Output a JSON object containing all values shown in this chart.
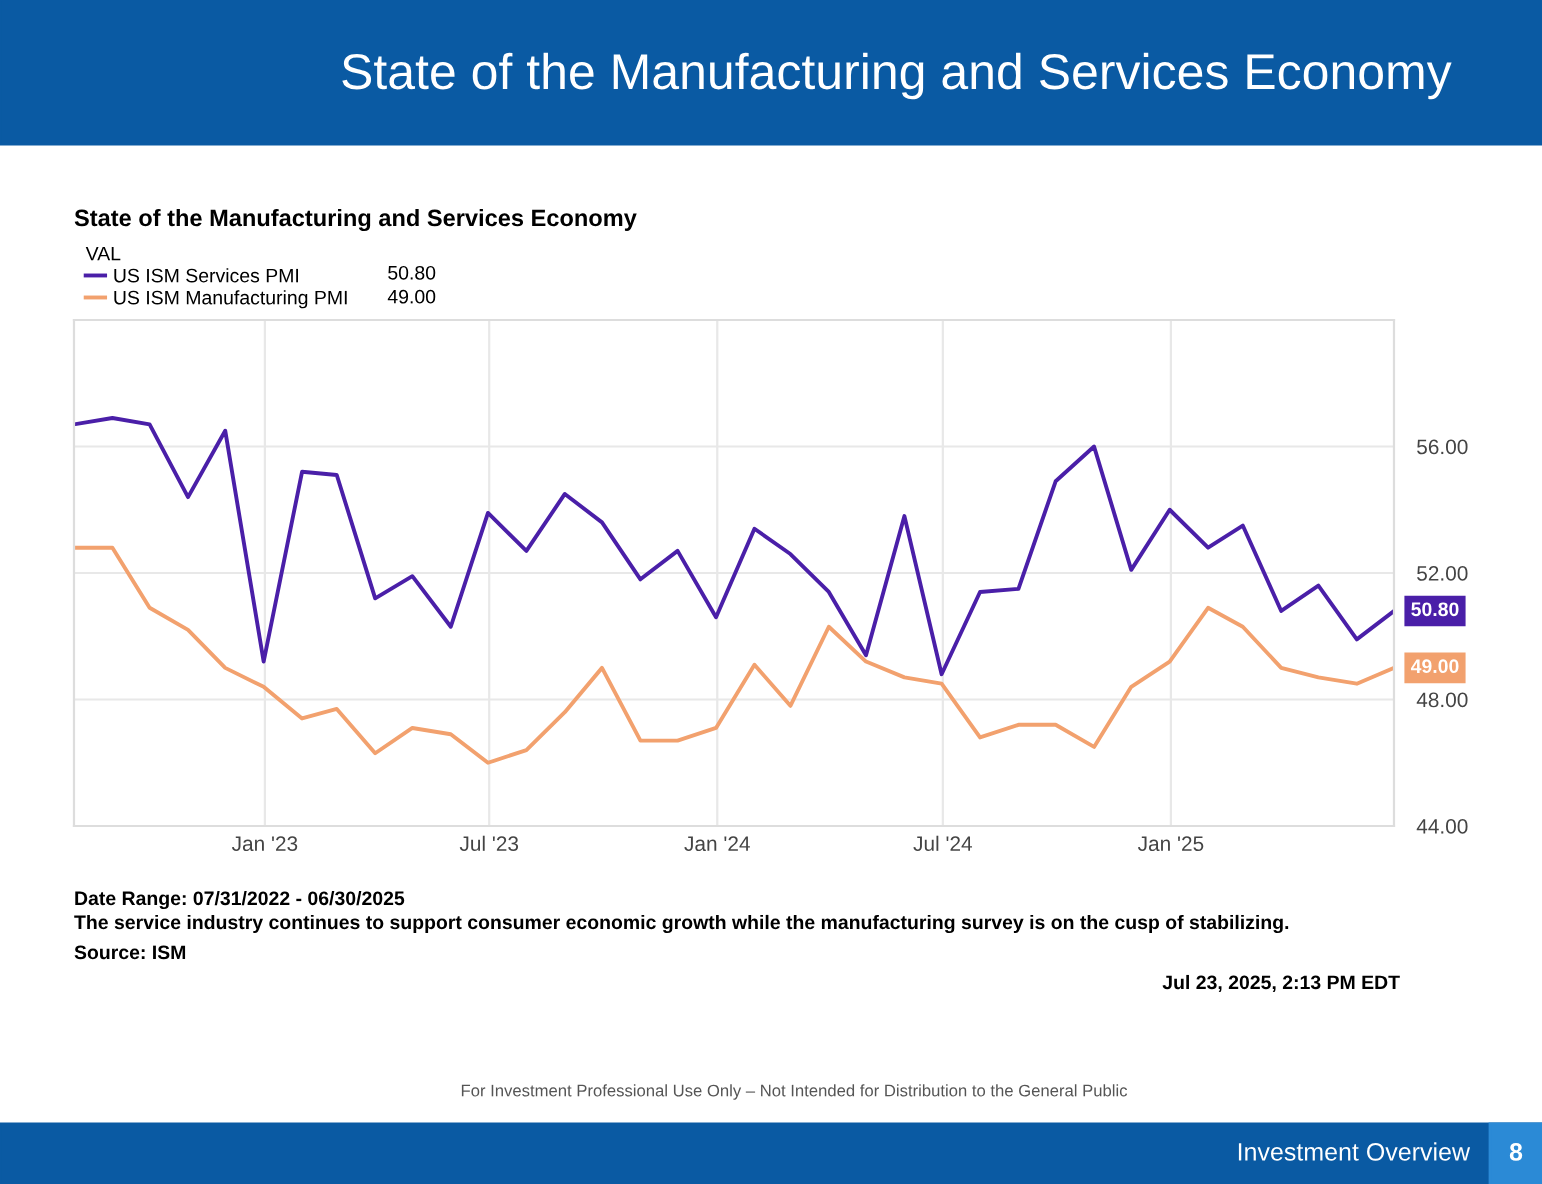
{
  "chart_data": {
    "type": "line",
    "title": "State of the Manufacturing and Services Economy",
    "subtitle": "State of the Manufacturing and Services Economy",
    "legend_title": "VAL",
    "legend": "top left",
    "grid": true,
    "marker": "none",
    "line_style": "solid",
    "x": [
      "2022-07-31",
      "2022-08-31",
      "2022-09-30",
      "2022-10-31",
      "2022-11-30",
      "2022-12-31",
      "2023-01-31",
      "2023-02-28",
      "2023-03-31",
      "2023-04-30",
      "2023-05-31",
      "2023-06-30",
      "2023-07-31",
      "2023-08-31",
      "2023-09-30",
      "2023-10-31",
      "2023-11-30",
      "2023-12-31",
      "2024-01-31",
      "2024-02-29",
      "2024-03-31",
      "2024-04-30",
      "2024-05-31",
      "2024-06-30",
      "2024-07-31",
      "2024-08-31",
      "2024-09-30",
      "2024-10-31",
      "2024-11-30",
      "2024-12-31",
      "2025-01-31",
      "2025-02-28",
      "2025-03-31",
      "2025-04-30",
      "2025-05-31",
      "2025-06-30"
    ],
    "series": [
      {
        "name": "US ISM Services PMI",
        "color": "#4a1fa8",
        "values": [
          56.7,
          56.9,
          56.7,
          54.4,
          56.5,
          49.2,
          55.2,
          55.1,
          51.2,
          51.9,
          50.3,
          53.9,
          52.7,
          54.5,
          53.6,
          51.8,
          52.7,
          50.6,
          53.4,
          52.6,
          51.4,
          49.4,
          53.8,
          48.8,
          51.4,
          51.5,
          54.9,
          56.0,
          52.1,
          54.0,
          52.8,
          53.5,
          50.8,
          51.6,
          49.9,
          50.8
        ],
        "value_labels": [
          null,
          null,
          null,
          null,
          null,
          null,
          null,
          null,
          null,
          null,
          null,
          null,
          null,
          null,
          null,
          null,
          null,
          null,
          null,
          null,
          null,
          null,
          null,
          null,
          null,
          null,
          null,
          null,
          null,
          null,
          null,
          null,
          null,
          null,
          null,
          "50.80"
        ]
      },
      {
        "name": "US ISM Manufacturing PMI",
        "color": "#f2a16e",
        "values": [
          52.8,
          52.8,
          50.9,
          50.2,
          49.0,
          48.4,
          47.4,
          47.7,
          46.3,
          47.1,
          46.9,
          46.0,
          46.4,
          47.6,
          49.0,
          46.7,
          46.7,
          47.1,
          49.1,
          47.8,
          50.3,
          49.2,
          48.7,
          48.5,
          46.8,
          47.2,
          47.2,
          46.5,
          48.4,
          49.2,
          50.9,
          50.3,
          49.0,
          48.7,
          48.5,
          49.0
        ],
        "value_labels": [
          null,
          null,
          null,
          null,
          null,
          null,
          null,
          null,
          null,
          null,
          null,
          null,
          null,
          null,
          null,
          null,
          null,
          null,
          null,
          null,
          null,
          null,
          null,
          null,
          null,
          null,
          null,
          null,
          null,
          null,
          null,
          null,
          null,
          null,
          null,
          "49.00"
        ]
      }
    ],
    "xlim": [
      "2022-07-31",
      "2025-06-30"
    ],
    "xticks": [
      {
        "value": "2023-01-01",
        "label": "Jan '23"
      },
      {
        "value": "2023-07-01",
        "label": "Jul '23"
      },
      {
        "value": "2024-01-01",
        "label": "Jan '24"
      },
      {
        "value": "2024-07-01",
        "label": "Jul '24"
      },
      {
        "value": "2025-01-01",
        "label": "Jan '25"
      }
    ],
    "ylim": [
      44,
      60
    ],
    "yticks": [
      {
        "value": 44,
        "label": "44.00"
      },
      {
        "value": 48,
        "label": "48.00"
      },
      {
        "value": 52,
        "label": "52.00"
      },
      {
        "value": 56,
        "label": "56.00"
      }
    ],
    "annotations": [
      "Date Range: 07/31/2022 - 06/30/2025",
      "The service industry continues to support consumer economic growth while the manufacturing survey is on the cusp of stabilizing.",
      "Source: ISM",
      "Jul 23, 2025, 2:13 PM EDT",
      "For Investment Professional Use Only – Not Intended for Distribution to the General Public",
      "Investment Overview",
      "8"
    ]
  }
}
